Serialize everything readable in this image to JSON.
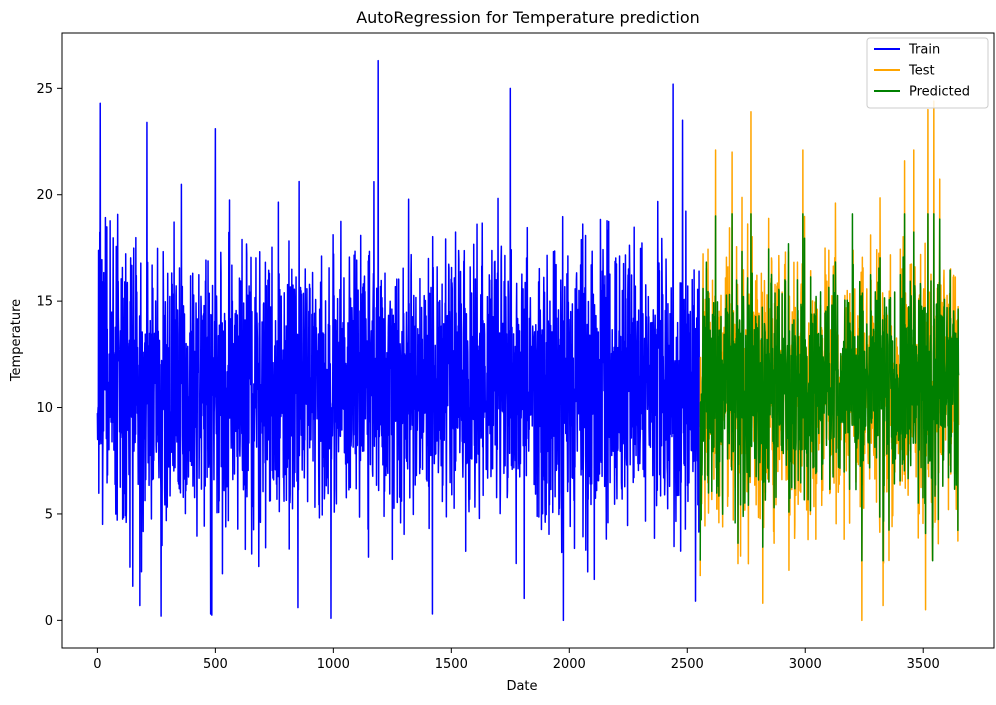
{
  "chart_data": {
    "type": "line",
    "title": "AutoRegression for Temperature prediction",
    "xlabel": "Date",
    "ylabel": "Temperature",
    "xlim": [
      -150,
      3800
    ],
    "ylim": [
      -1.3,
      27.6
    ],
    "xticks": [
      0,
      500,
      1000,
      1500,
      2000,
      2500,
      3000,
      3500
    ],
    "yticks": [
      0,
      5,
      10,
      15,
      20,
      25
    ],
    "grid": false,
    "legend_position": "top-right",
    "series": [
      {
        "name": "Train",
        "color": "#0000ff",
        "x_range": [
          0,
          2554
        ],
        "mean": 11.2,
        "spread": 3.2,
        "min": 0.0,
        "max": 26.3,
        "notable_points": [
          [
            12,
            24.3
          ],
          [
            150,
            1.6
          ],
          [
            180,
            0.7
          ],
          [
            210,
            23.4
          ],
          [
            270,
            0.2
          ],
          [
            480,
            0.3
          ],
          [
            500,
            23.1
          ],
          [
            850,
            0.6
          ],
          [
            990,
            0.1
          ],
          [
            1190,
            26.3
          ],
          [
            1420,
            0.3
          ],
          [
            1750,
            25.0
          ],
          [
            1975,
            0.0
          ],
          [
            2440,
            25.2
          ],
          [
            2480,
            23.5
          ],
          [
            2535,
            0.9
          ]
        ]
      },
      {
        "name": "Test",
        "color": "#ffa500",
        "x_range": [
          2555,
          3650
        ],
        "mean": 11.0,
        "spread": 3.3,
        "min": 0.0,
        "max": 24.4,
        "notable_points": [
          [
            2620,
            22.1
          ],
          [
            2690,
            22.0
          ],
          [
            2770,
            23.9
          ],
          [
            2820,
            0.8
          ],
          [
            2990,
            22.1
          ],
          [
            3240,
            0.0
          ],
          [
            3330,
            0.7
          ],
          [
            3460,
            22.1
          ],
          [
            3520,
            24.0
          ],
          [
            3545,
            24.4
          ],
          [
            3510,
            0.5
          ]
        ]
      },
      {
        "name": "Predicted",
        "color": "#008000",
        "x_range": [
          2555,
          3650
        ],
        "mean": 11.0,
        "spread": 2.4,
        "min": 2.8,
        "max": 19.1,
        "notable_points": [
          [
            2620,
            19.0
          ],
          [
            3200,
            19.1
          ],
          [
            3540,
            2.8
          ]
        ]
      }
    ]
  }
}
